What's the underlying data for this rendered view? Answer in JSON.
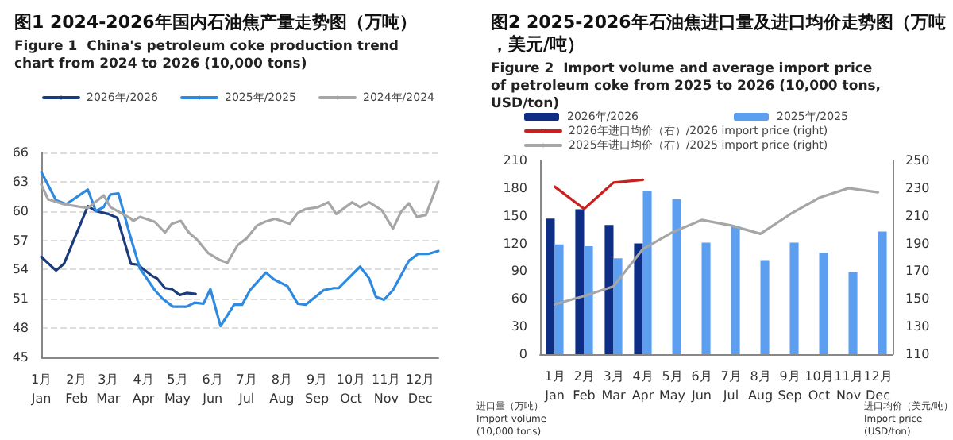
{
  "chart_data": [
    {
      "type": "line",
      "title": "图1 2024-2026年国内石油焦产量走势图（万吨）",
      "subtitle": "Figure 1  China's petroleum coke production trend chart from 2024 to 2026 (10,000 tons)",
      "legend": "top",
      "grid": "y",
      "marker": "none",
      "line_style": "solid",
      "xlim": [
        "--01-01",
        "--12-17"
      ],
      "xticks": [
        {
          "value": "--01",
          "label": "1月\nJan"
        },
        {
          "value": "--02",
          "label": "2月\nFeb"
        },
        {
          "value": "--03",
          "label": "3月\nMar"
        },
        {
          "value": "--04",
          "label": "4月\nApr"
        },
        {
          "value": "--05",
          "label": "5月\nMay"
        },
        {
          "value": "--06",
          "label": "6月\nJun"
        },
        {
          "value": "--07",
          "label": "7月\nJul"
        },
        {
          "value": "--08",
          "label": "8月\nAug"
        },
        {
          "value": "--09",
          "label": "9月\nSep"
        },
        {
          "value": "--10",
          "label": "10月\nOct"
        },
        {
          "value": "--11",
          "label": "11月\nNov"
        },
        {
          "value": "--12",
          "label": "12月\nDec"
        }
      ],
      "ylim": [
        45,
        66
      ],
      "yticks": [
        45,
        48,
        51,
        54,
        57,
        60,
        63,
        66
      ],
      "series": [
        {
          "name": "2026年/2026",
          "color": "#1b3b7c",
          "x": [
            "--01-01",
            "--01-14",
            "--01-21",
            "--02-11",
            "--02-18",
            "--03-01",
            "--03-09",
            "--03-21",
            "--03-27",
            "--04-08",
            "--04-13",
            "--04-20",
            "--04-26",
            "--05-03",
            "--05-09",
            "--05-17"
          ],
          "values": [
            55.3,
            53.9,
            54.6,
            60.5,
            60.0,
            59.7,
            59.3,
            54.6,
            54.5,
            53.4,
            53.1,
            52.1,
            52.0,
            51.4,
            51.6,
            51.5
          ]
        },
        {
          "name": "2025年/2025",
          "color": "#2e8ae0",
          "x": [
            "--01-01",
            "--01-14",
            "--01-23",
            "--02-11",
            "--02-18",
            "--02-25",
            "--03-03",
            "--03-10",
            "--03-20",
            "--03-29",
            "--04-11",
            "--04-18",
            "--04-27",
            "--05-09",
            "--05-16",
            "--05-24",
            "--05-30",
            "--06-08",
            "--06-20",
            "--06-27",
            "--07-04",
            "--07-18",
            "--07-25",
            "--08-06",
            "--08-15",
            "--08-22",
            "--09-07",
            "--09-16",
            "--09-20",
            "--10-09",
            "--10-17",
            "--10-23",
            "--10-30",
            "--11-07",
            "--11-21",
            "--11-29",
            "--12-08",
            "--12-17"
          ],
          "values": [
            64.0,
            61.1,
            60.7,
            62.2,
            60.0,
            60.4,
            61.7,
            61.8,
            57.6,
            54.1,
            51.9,
            51.0,
            50.2,
            50.2,
            50.6,
            50.5,
            52.0,
            48.2,
            50.4,
            50.4,
            51.9,
            53.7,
            53.0,
            52.3,
            50.5,
            50.4,
            51.9,
            52.1,
            52.1,
            54.3,
            53.1,
            51.2,
            50.9,
            51.9,
            54.9,
            55.6,
            55.6,
            55.9
          ]
        },
        {
          "name": "2024年/2024",
          "color": "#a6a6a6",
          "x": [
            "--01-01",
            "--01-07",
            "--01-21",
            "--02-11",
            "--02-25",
            "--03-03",
            "--03-20",
            "--03-23",
            "--03-29",
            "--04-11",
            "--04-20",
            "--04-26",
            "--05-04",
            "--05-11",
            "--05-18",
            "--05-28",
            "--06-07",
            "--06-14",
            "--06-23",
            "--07-01",
            "--07-10",
            "--07-17",
            "--07-26",
            "--08-08",
            "--08-15",
            "--08-22",
            "--09-02",
            "--09-11",
            "--09-18",
            "--10-02",
            "--10-09",
            "--10-17",
            "--10-28",
            "--11-07",
            "--11-14",
            "--11-21",
            "--11-28",
            "--12-06",
            "--12-17"
          ],
          "values": [
            62.7,
            61.2,
            60.7,
            60.3,
            61.6,
            60.4,
            59.3,
            59.0,
            59.4,
            58.9,
            57.8,
            58.7,
            59.0,
            57.8,
            57.1,
            55.7,
            55.0,
            54.7,
            56.5,
            57.2,
            58.5,
            58.9,
            59.2,
            58.7,
            59.8,
            60.2,
            60.4,
            60.9,
            59.7,
            60.9,
            60.4,
            60.9,
            60.1,
            58.2,
            59.9,
            60.8,
            59.4,
            59.6,
            63.0
          ]
        }
      ]
    },
    {
      "type": "bar",
      "title": "图2 2025-2026年石油焦进口量及进口均价走势图（万吨，美元/吨）",
      "subtitle": "Figure 2  Import volume and average import price of petroleum coke from 2025 to 2026 (10,000 tons, USD/ton)",
      "legend": "top",
      "marker": "none",
      "line_style": "solid",
      "ylabel": "进口量（万吨）\nImport volume\n(10,000 tons)",
      "y2label": "进口均价（美元/吨）\nImport price\n(USD/ton)",
      "categories": [
        "1月\nJan",
        "2月\nFeb",
        "3月\nMar",
        "4月\nApr",
        "5月\nMay",
        "6月\nJun",
        "7月\nJul",
        "8月\nAug",
        "9月\nSep",
        "10月\nOct",
        "11月\nNov",
        "12月\nDec"
      ],
      "ylim": [
        0,
        210
      ],
      "yticks": [
        0,
        30,
        60,
        90,
        120,
        150,
        180,
        210
      ],
      "y2lim": [
        110,
        250
      ],
      "y2ticks": [
        110,
        130,
        150,
        170,
        190,
        210,
        230,
        250
      ],
      "series": [
        {
          "name": "2026年/2026",
          "color": "#0e2d84",
          "values": [
            147,
            157,
            140,
            120,
            null,
            null,
            null,
            null,
            null,
            null,
            null,
            null
          ]
        },
        {
          "name": "2025年/2025",
          "color": "#5c9ff0",
          "values": [
            119,
            117,
            104,
            177,
            168,
            121,
            139,
            102,
            121,
            110,
            89,
            133
          ]
        },
        {
          "name": "2026年进口均价（右）/2026 import price (right)",
          "type": "line",
          "axis": "y2",
          "color": "#c8201e",
          "values": [
            231,
            215,
            234,
            236,
            null,
            null,
            null,
            null,
            null,
            null,
            null,
            null
          ]
        },
        {
          "name": "2025年进口均价（右）/2025 import price (right)",
          "type": "line",
          "axis": "y2",
          "color": "#a6a6a6",
          "values": [
            146,
            152,
            159,
            186,
            198,
            207,
            203,
            197,
            211,
            223,
            230,
            227
          ]
        }
      ]
    }
  ]
}
